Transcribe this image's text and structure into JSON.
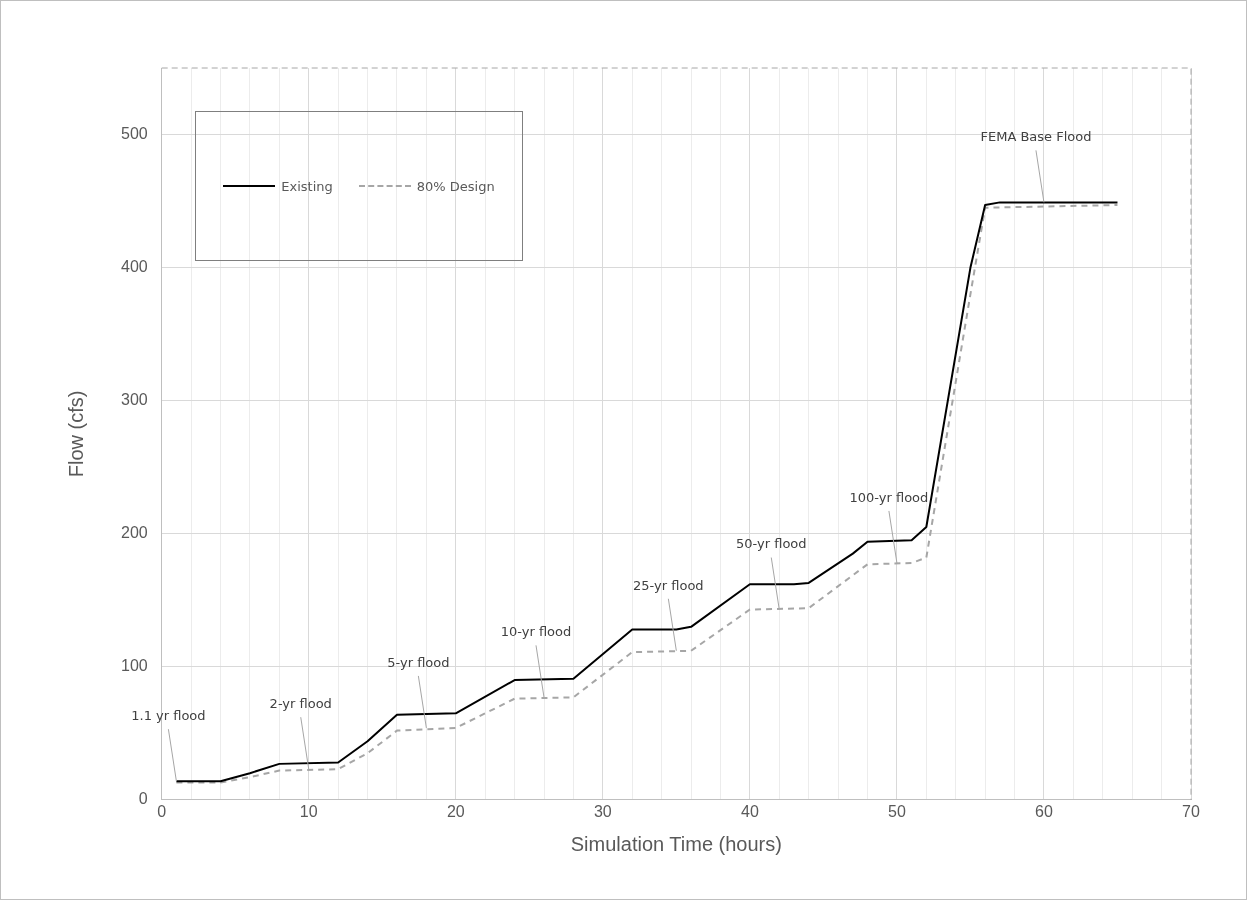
{
  "chart_data": {
    "type": "line",
    "xlabel": "Simulation Time (hours)",
    "ylabel": "Flow (cfs)",
    "xlim": [
      0,
      70
    ],
    "ylim": [
      0,
      550
    ],
    "xticks": [
      0,
      {
        "value": 2,
        "label": null
      },
      {
        "value": 4,
        "label": null
      },
      {
        "value": 6,
        "label": null
      },
      {
        "value": 8,
        "label": null
      },
      10,
      {
        "value": 12,
        "label": null
      },
      {
        "value": 14,
        "label": null
      },
      {
        "value": 16,
        "label": null
      },
      {
        "value": 18,
        "label": null
      },
      20,
      {
        "value": 22,
        "label": null
      },
      {
        "value": 24,
        "label": null
      },
      {
        "value": 26,
        "label": null
      },
      {
        "value": 28,
        "label": null
      },
      30,
      {
        "value": 32,
        "label": null
      },
      {
        "value": 34,
        "label": null
      },
      {
        "value": 36,
        "label": null
      },
      {
        "value": 38,
        "label": null
      },
      40,
      {
        "value": 42,
        "label": null
      },
      {
        "value": 44,
        "label": null
      },
      {
        "value": 46,
        "label": null
      },
      {
        "value": 48,
        "label": null
      },
      50,
      {
        "value": 52,
        "label": null
      },
      {
        "value": 54,
        "label": null
      },
      {
        "value": 56,
        "label": null
      },
      {
        "value": 58,
        "label": null
      },
      60,
      {
        "value": 62,
        "label": null
      },
      {
        "value": 64,
        "label": null
      },
      {
        "value": 66,
        "label": null
      },
      {
        "value": 68,
        "label": null
      },
      70
    ],
    "yticks": [
      0,
      100,
      200,
      300,
      400,
      500
    ],
    "grid": true,
    "legend": "top left",
    "marker": "none",
    "series": [
      {
        "name": "Existing",
        "color": "#000000",
        "line_style": "solid",
        "x": [
          1,
          4,
          6,
          8,
          12,
          14,
          16,
          20,
          24,
          28,
          32,
          35,
          36,
          40,
          43,
          44,
          47,
          48,
          51,
          52,
          55,
          56,
          57,
          65
        ],
        "values": [
          14,
          14,
          20,
          27,
          28,
          44,
          64,
          65,
          90,
          91,
          128,
          128,
          130,
          162,
          162,
          163,
          185,
          194,
          195,
          205,
          400,
          447,
          449,
          449
        ]
      },
      {
        "name": "80% Design",
        "color": "#a6a6a6",
        "line_style": "dashed",
        "x": [
          1,
          4,
          6,
          8,
          12,
          14,
          16,
          20,
          24,
          28,
          32,
          36,
          40,
          44,
          48,
          51,
          52,
          55,
          56,
          65
        ],
        "values": [
          13,
          13,
          17,
          22,
          23,
          35,
          52,
          54,
          76,
          77,
          111,
          112,
          143,
          144,
          177,
          178,
          182,
          380,
          445,
          447
        ]
      }
    ],
    "annotations": [
      {
        "text": "1.1 yr flood",
        "x": 1,
        "y": 14
      },
      {
        "text": "2-yr flood",
        "x": 10,
        "y": 23
      },
      {
        "text": "5-yr flood",
        "x": 18,
        "y": 54
      },
      {
        "text": "10-yr flood",
        "x": 26,
        "y": 77
      },
      {
        "text": "25-yr flood",
        "x": 35,
        "y": 112
      },
      {
        "text": "50-yr flood",
        "x": 42,
        "y": 143
      },
      {
        "text": "100-yr flood",
        "x": 50,
        "y": 178
      },
      {
        "text": "FEMA Base Flood",
        "x": 60,
        "y": 449
      }
    ]
  }
}
